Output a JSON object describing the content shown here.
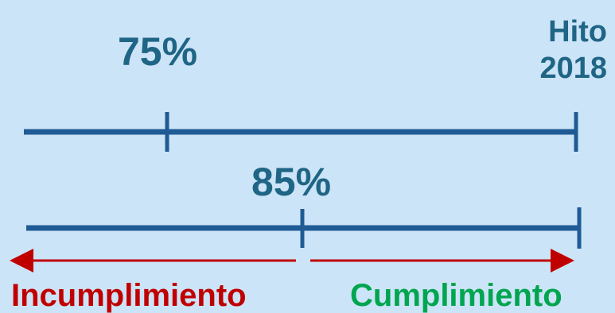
{
  "labels": {
    "top_percent": "75%",
    "milestone_line1": "Hito",
    "milestone_line2": "2018",
    "bottom_percent": "85%",
    "left_outcome": "Incumplimiento",
    "right_outcome": "Cumplimiento"
  },
  "scale": {
    "top_marker": 0.75,
    "bottom_marker": 0.85
  },
  "colors": {
    "background": "#cce4f7",
    "line": "#1f5b95",
    "label": "#1f6585",
    "failure": "#c00000",
    "success": "#00a550"
  }
}
